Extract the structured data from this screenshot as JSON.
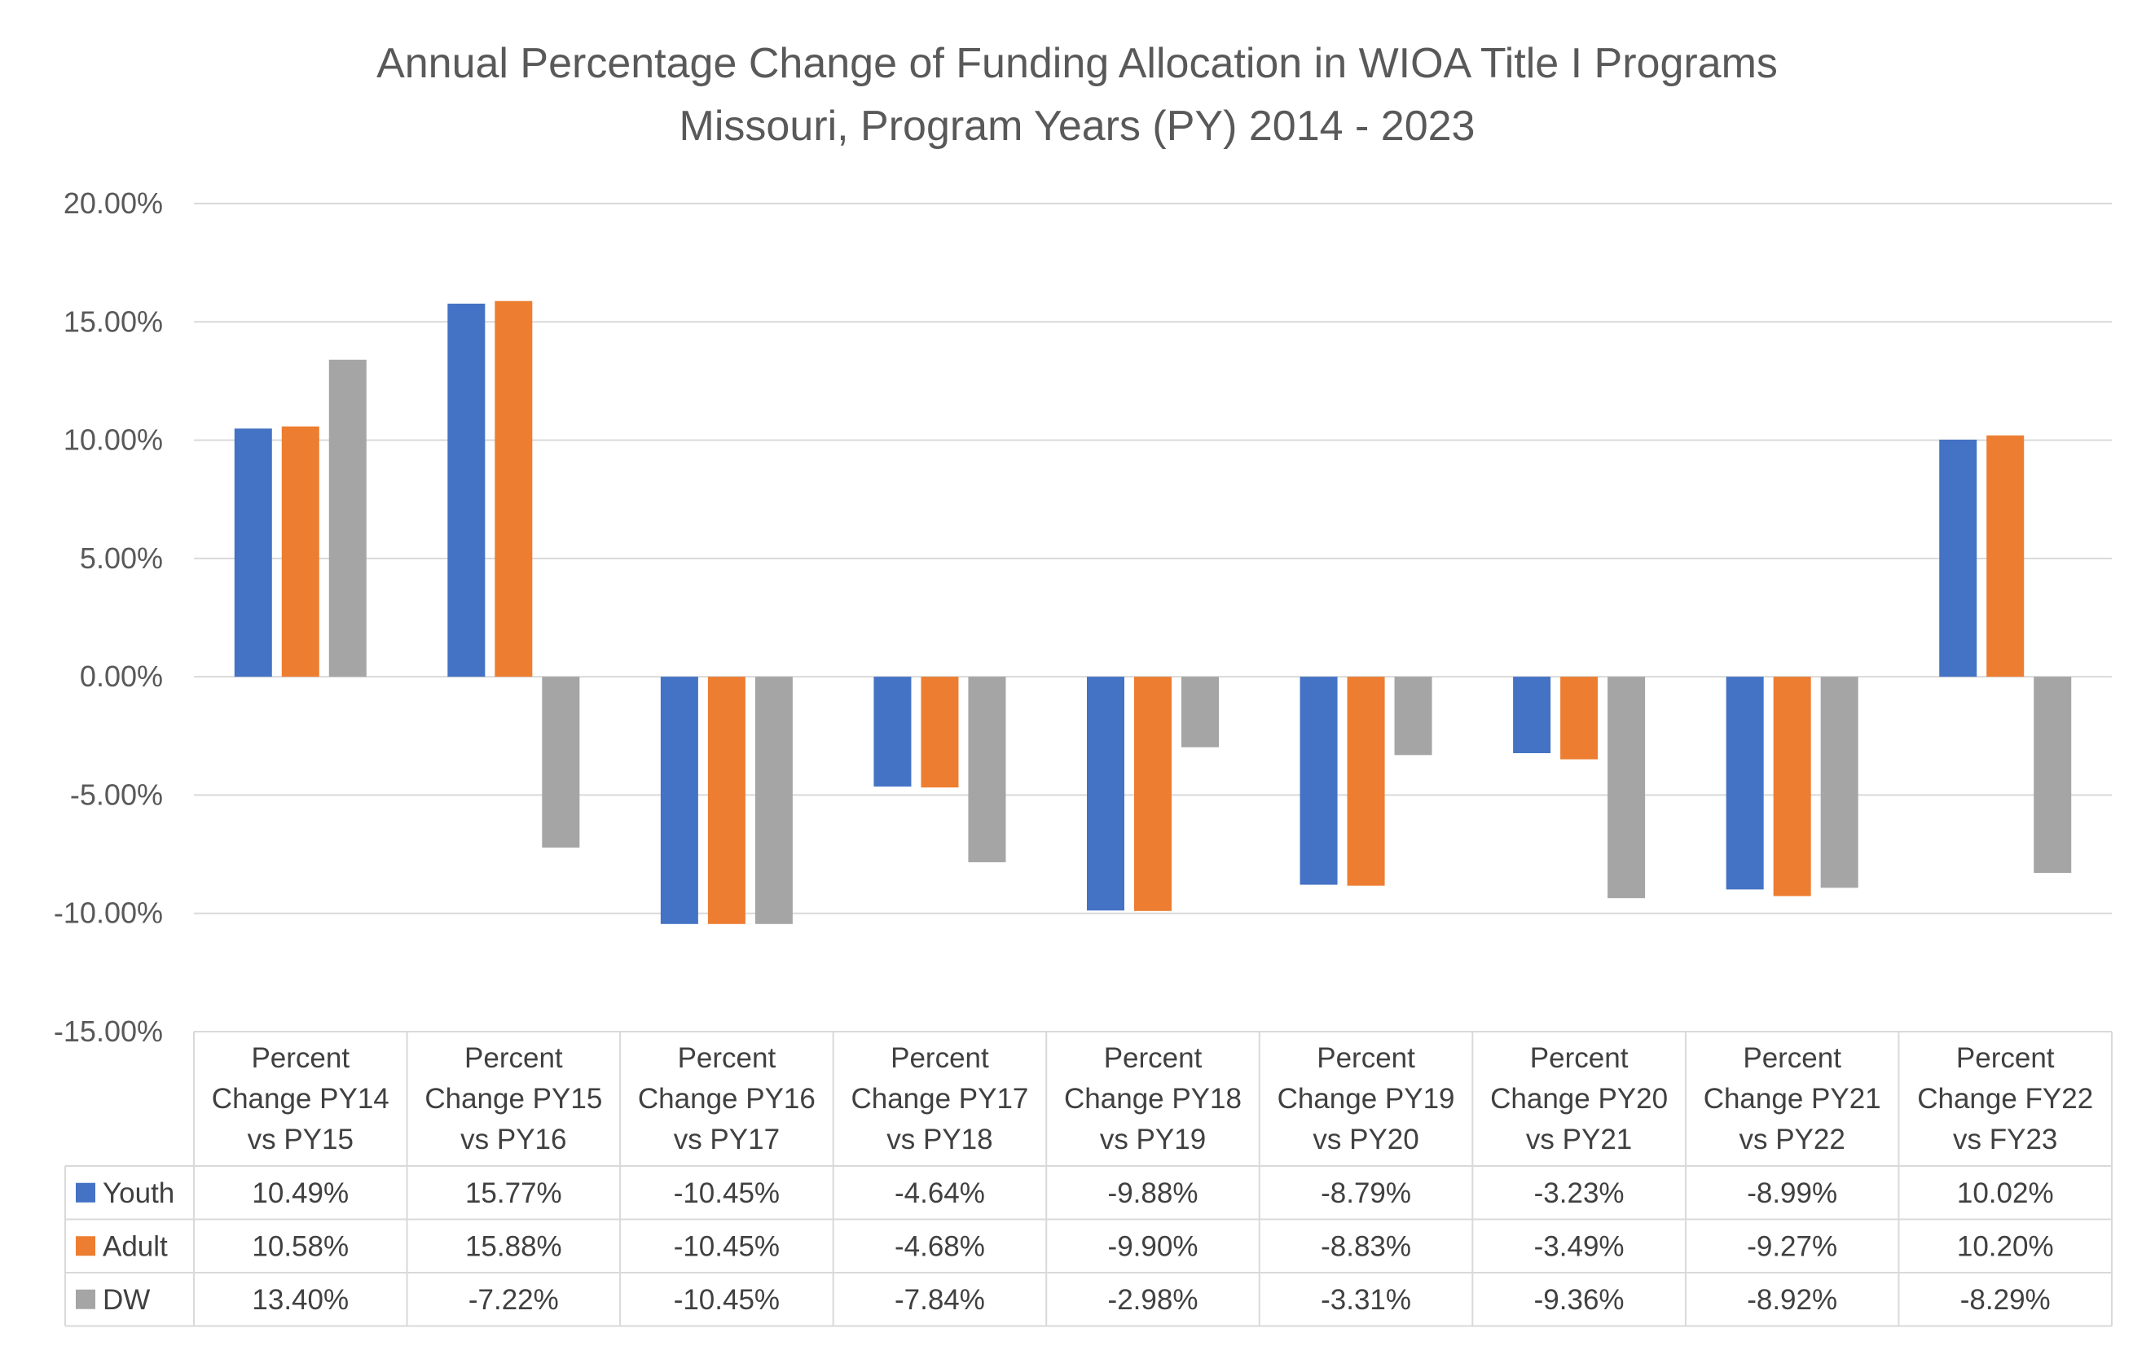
{
  "chart_data": {
    "type": "bar",
    "title": "Annual Percentage Change of Funding Allocation in WIOA Title I Programs",
    "subtitle": "Missouri, Program Years (PY) 2014 - 2023",
    "categories": [
      [
        "Percent",
        "Change PY14",
        "vs PY15"
      ],
      [
        "Percent",
        "Change PY15",
        "vs PY16"
      ],
      [
        "Percent",
        "Change PY16",
        "vs PY17"
      ],
      [
        "Percent",
        "Change PY17",
        "vs PY18"
      ],
      [
        "Percent",
        "Change PY18",
        "vs PY19"
      ],
      [
        "Percent",
        "Change PY19",
        "vs PY20"
      ],
      [
        "Percent",
        "Change PY20",
        "vs PY21"
      ],
      [
        "Percent",
        "Change PY21",
        "vs PY22"
      ],
      [
        "Percent",
        "Change FY22",
        "vs FY23"
      ]
    ],
    "series": [
      {
        "name": "Youth",
        "color": "#4472c4",
        "values": [
          10.49,
          15.77,
          -10.45,
          -4.64,
          -9.88,
          -8.79,
          -3.23,
          -8.99,
          10.02
        ],
        "labels": [
          "10.49%",
          "15.77%",
          "-10.45%",
          "-4.64%",
          "-9.88%",
          "-8.79%",
          "-3.23%",
          "-8.99%",
          "10.02%"
        ]
      },
      {
        "name": "Adult",
        "color": "#ed7d31",
        "values": [
          10.58,
          15.88,
          -10.45,
          -4.68,
          -9.9,
          -8.83,
          -3.49,
          -9.27,
          10.2
        ],
        "labels": [
          "10.58%",
          "15.88%",
          "-10.45%",
          "-4.68%",
          "-9.90%",
          "-8.83%",
          "-3.49%",
          "-9.27%",
          "10.20%"
        ]
      },
      {
        "name": "DW",
        "color": "#a5a5a5",
        "values": [
          13.4,
          -7.22,
          -10.45,
          -7.84,
          -2.98,
          -3.31,
          -9.36,
          -8.92,
          -8.29
        ],
        "labels": [
          "13.40%",
          "-7.22%",
          "-10.45%",
          "-7.84%",
          "-2.98%",
          "-3.31%",
          "-9.36%",
          "-8.92%",
          "-8.29%"
        ]
      }
    ],
    "ylim": [
      -15,
      20
    ],
    "yticks": [
      20,
      15,
      10,
      5,
      0,
      -5,
      -10,
      -15
    ],
    "ytick_labels": [
      "20.00%",
      "15.00%",
      "10.00%",
      "5.00%",
      "0.00%",
      "-5.00%",
      "-10.00%",
      "-15.00%"
    ],
    "grid": true,
    "legend": "data-table"
  }
}
